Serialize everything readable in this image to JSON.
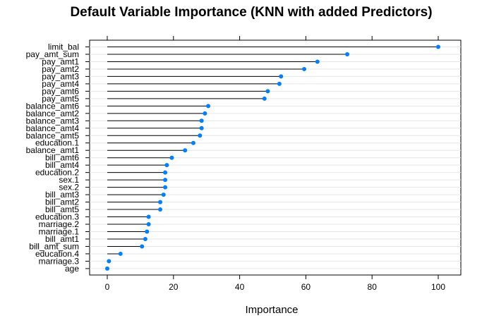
{
  "chart_data": {
    "type": "dot",
    "title": "Default Variable Importance (KNN with added Predictors)",
    "xlabel": "Importance",
    "ylabel": "",
    "xlim": [
      -7,
      107
    ],
    "xticks": [
      "0",
      "20",
      "40",
      "60",
      "80",
      "100"
    ],
    "grid": false,
    "marker_color": "#0080ff",
    "categories": [
      "limit_bal",
      "pay_amt_sum",
      "pay_amt1",
      "pay_amt2",
      "pay_amt3",
      "pay_amt4",
      "pay_amt6",
      "pay_amt5",
      "balance_amt6",
      "balance_amt2",
      "balance_amt3",
      "balance_amt4",
      "balance_amt5",
      "education.1",
      "balance_amt1",
      "bill_amt6",
      "bill_amt4",
      "education.2",
      "sex.1",
      "sex.2",
      "bill_amt3",
      "bill_amt2",
      "bill_amt5",
      "education.3",
      "marriage.2",
      "marriage.1",
      "bill_amt1",
      "bill_amt_sum",
      "education.4",
      "marriage.3",
      "age"
    ],
    "values": [
      100,
      72.5,
      63.5,
      59.5,
      52.5,
      52,
      48.5,
      47.5,
      30.5,
      29.5,
      28.5,
      28.5,
      28,
      26,
      23.5,
      19.5,
      18,
      17.5,
      17.5,
      17.5,
      17,
      16,
      16,
      12.5,
      12.5,
      12,
      11.5,
      10.5,
      4,
      0.5,
      0
    ]
  }
}
